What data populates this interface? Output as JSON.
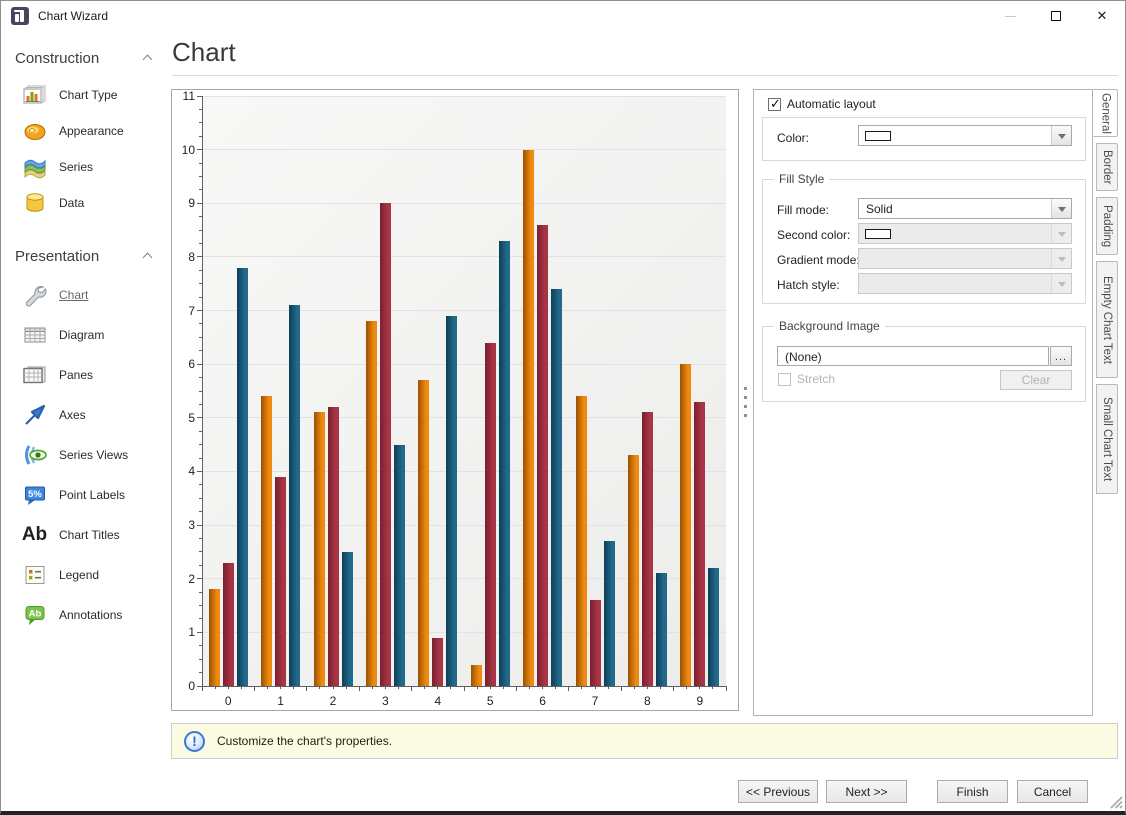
{
  "window": {
    "title": "Chart Wizard",
    "controls": {
      "minimize": "",
      "maximize": "",
      "close": "✕"
    }
  },
  "sidebar": {
    "sections": [
      {
        "label": "Construction",
        "items": [
          {
            "label": "Chart Type",
            "icon": "chart-type-icon"
          },
          {
            "label": "Appearance",
            "icon": "appearance-icon"
          },
          {
            "label": "Series",
            "icon": "series-icon"
          },
          {
            "label": "Data",
            "icon": "data-icon"
          }
        ]
      },
      {
        "label": "Presentation",
        "items": [
          {
            "label": "Chart",
            "icon": "wrench-icon",
            "active": true
          },
          {
            "label": "Diagram",
            "icon": "diagram-icon"
          },
          {
            "label": "Panes",
            "icon": "panes-icon"
          },
          {
            "label": "Axes",
            "icon": "axes-icon"
          },
          {
            "label": "Series Views",
            "icon": "series-views-icon"
          },
          {
            "label": "Point Labels",
            "icon": "point-labels-icon",
            "icon_text": "5%"
          },
          {
            "label": "Chart Titles",
            "icon": "chart-titles-icon",
            "icon_text": "Ab"
          },
          {
            "label": "Legend",
            "icon": "legend-icon"
          },
          {
            "label": "Annotations",
            "icon": "annotations-icon",
            "icon_text": "Ab"
          }
        ]
      }
    ]
  },
  "main": {
    "heading": "Chart"
  },
  "chart_data": {
    "type": "bar",
    "title": "",
    "xlabel": "",
    "ylabel": "",
    "categories": [
      "0",
      "1",
      "2",
      "3",
      "4",
      "5",
      "6",
      "7",
      "8",
      "9"
    ],
    "series": [
      {
        "color": "#ee8a10",
        "color_dark": "#9a5100",
        "values": [
          1.8,
          5.4,
          5.1,
          6.8,
          5.7,
          0.4,
          10.0,
          5.4,
          4.3,
          6.0
        ]
      },
      {
        "color": "#a83546",
        "color_dark": "#7a1f2e",
        "values": [
          2.3,
          3.9,
          5.2,
          9.0,
          0.9,
          6.4,
          8.6,
          1.6,
          5.1,
          5.3
        ]
      },
      {
        "color": "#216a8c",
        "color_dark": "#0e3e56",
        "values": [
          7.8,
          7.1,
          2.5,
          4.5,
          6.9,
          8.3,
          7.4,
          2.7,
          2.1,
          2.2
        ]
      }
    ],
    "ylim": [
      0,
      11
    ],
    "ytick_step": 1,
    "grid": true,
    "legend_position": "none"
  },
  "properties": {
    "automatic_layout": {
      "label": "Automatic layout",
      "checked": true,
      "check_glyph": "✓"
    },
    "color": {
      "label": "Color:"
    },
    "fill_style": {
      "title": "Fill Style",
      "fill_mode": {
        "label": "Fill mode:",
        "value": "Solid"
      },
      "second_color": {
        "label": "Second color:"
      },
      "gradient_mode": {
        "label": "Gradient mode:"
      },
      "hatch_style": {
        "label": "Hatch style:"
      }
    },
    "background_image": {
      "title": "Background Image",
      "value": "(None)",
      "browse_label": "...",
      "stretch_label": "Stretch",
      "clear_label": "Clear"
    }
  },
  "side_tabs": {
    "active": "General",
    "items": [
      "General",
      "Border",
      "Padding",
      "Empty Chart Text",
      "Small Chart Text"
    ]
  },
  "status": {
    "icon_glyph": "!",
    "message": "Customize the chart's properties."
  },
  "footer": {
    "previous": "<< Previous",
    "next": "Next >>",
    "finish": "Finish",
    "cancel": "Cancel"
  }
}
